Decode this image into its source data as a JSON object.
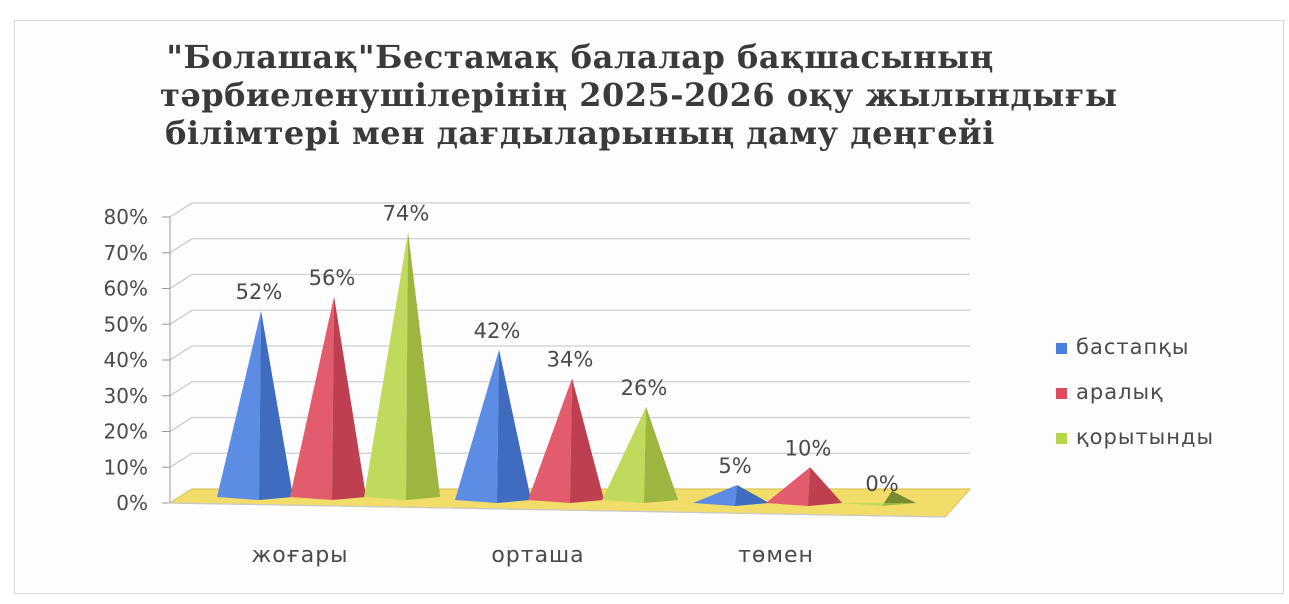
{
  "chart_data": {
    "type": "bar",
    "style": "3d-pyramid",
    "title_lines": [
      "\"Болашақ\"Бестамақ балалар бақшасының",
      "тәрбиеленушілерінің 2025-2026 оқу жылындығы",
      "білімтері мен дағдыларының даму деңгейі"
    ],
    "categories": [
      "жоғары",
      "орташа",
      "төмен"
    ],
    "series": [
      {
        "name": "бастапқы",
        "values": [
          52,
          42,
          5
        ],
        "labels": [
          "52%",
          "42%",
          "5%"
        ],
        "color": "#4a7fe0"
      },
      {
        "name": "аралық",
        "values": [
          56,
          34,
          10
        ],
        "labels": [
          "56%",
          "34%",
          "10%"
        ],
        "color": "#e04a5e"
      },
      {
        "name": "қорытынды",
        "values": [
          74,
          26,
          0
        ],
        "labels": [
          "74%",
          "26%",
          "0%"
        ],
        "color": "#b8d64a"
      }
    ],
    "y_ticks": [
      "0%",
      "10%",
      "20%",
      "30%",
      "40%",
      "50%",
      "60%",
      "70%",
      "80%"
    ],
    "ylim": [
      0,
      80
    ],
    "floor_color": "#f2dc6a",
    "grid": true,
    "legend_position": "right"
  }
}
